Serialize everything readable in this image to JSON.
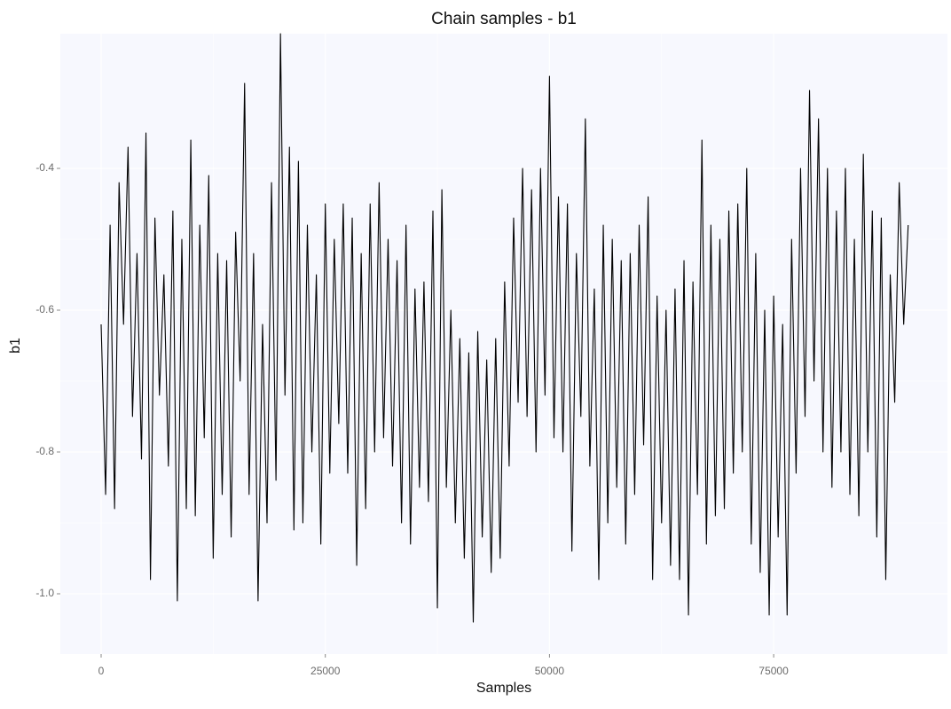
{
  "chart_data": {
    "type": "line",
    "title": "Chain samples - b1",
    "x_label": "Samples",
    "y_label": "b1",
    "x": [
      0,
      500,
      1000,
      1500,
      2000,
      2500,
      3000,
      3500,
      4000,
      4500,
      5000,
      5500,
      6000,
      6500,
      7000,
      7500,
      8000,
      8500,
      9000,
      9500,
      10000,
      10500,
      11000,
      11500,
      12000,
      12500,
      13000,
      13500,
      14000,
      14500,
      15000,
      15500,
      16000,
      16500,
      17000,
      17500,
      18000,
      18500,
      19000,
      19500,
      20000,
      20500,
      21000,
      21500,
      22000,
      22500,
      23000,
      23500,
      24000,
      24500,
      25000,
      25500,
      26000,
      26500,
      27000,
      27500,
      28000,
      28500,
      29000,
      29500,
      30000,
      30500,
      31000,
      31500,
      32000,
      32500,
      33000,
      33500,
      34000,
      34500,
      35000,
      35500,
      36000,
      36500,
      37000,
      37500,
      38000,
      38500,
      39000,
      39500,
      40000,
      40500,
      41000,
      41500,
      42000,
      42500,
      43000,
      43500,
      44000,
      44500,
      45000,
      45500,
      46000,
      46500,
      47000,
      47500,
      48000,
      48500,
      49000,
      49500,
      50000,
      50500,
      51000,
      51500,
      52000,
      52500,
      53000,
      53500,
      54000,
      54500,
      55000,
      55500,
      56000,
      56500,
      57000,
      57500,
      58000,
      58500,
      59000,
      59500,
      60000,
      60500,
      61000,
      61500,
      62000,
      62500,
      63000,
      63500,
      64000,
      64500,
      65000,
      65500,
      66000,
      66500,
      67000,
      67500,
      68000,
      68500,
      69000,
      69500,
      70000,
      70500,
      71000,
      71500,
      72000,
      72500,
      73000,
      73500,
      74000,
      74500,
      75000,
      75500,
      76000,
      76500,
      77000,
      77500,
      78000,
      78500,
      79000,
      79500,
      80000,
      80500,
      81000,
      81500,
      82000,
      82500,
      83000,
      83500,
      84000,
      84500,
      85000,
      85500,
      86000,
      86500,
      87000,
      87500,
      88000,
      88500,
      89000,
      89500,
      90000
    ],
    "series": [
      {
        "name": "b1",
        "color": "#000000",
        "values": [
          -0.62,
          -0.86,
          -0.48,
          -0.88,
          -0.42,
          -0.62,
          -0.37,
          -0.75,
          -0.52,
          -0.81,
          -0.35,
          -0.98,
          -0.47,
          -0.72,
          -0.55,
          -0.82,
          -0.46,
          -1.01,
          -0.5,
          -0.88,
          -0.36,
          -0.89,
          -0.48,
          -0.78,
          -0.41,
          -0.95,
          -0.52,
          -0.86,
          -0.53,
          -0.92,
          -0.49,
          -0.7,
          -0.28,
          -0.86,
          -0.52,
          -1.01,
          -0.62,
          -0.9,
          -0.42,
          -0.84,
          -0.21,
          -0.72,
          -0.37,
          -0.91,
          -0.39,
          -0.9,
          -0.48,
          -0.8,
          -0.55,
          -0.93,
          -0.45,
          -0.83,
          -0.5,
          -0.76,
          -0.45,
          -0.83,
          -0.47,
          -0.96,
          -0.52,
          -0.88,
          -0.45,
          -0.8,
          -0.42,
          -0.78,
          -0.5,
          -0.82,
          -0.53,
          -0.9,
          -0.48,
          -0.93,
          -0.57,
          -0.85,
          -0.56,
          -0.87,
          -0.46,
          -1.02,
          -0.43,
          -0.85,
          -0.6,
          -0.9,
          -0.64,
          -0.95,
          -0.66,
          -1.04,
          -0.63,
          -0.92,
          -0.67,
          -0.97,
          -0.64,
          -0.95,
          -0.56,
          -0.82,
          -0.47,
          -0.73,
          -0.4,
          -0.75,
          -0.43,
          -0.8,
          -0.4,
          -0.72,
          -0.27,
          -0.78,
          -0.44,
          -0.8,
          -0.45,
          -0.94,
          -0.52,
          -0.75,
          -0.33,
          -0.82,
          -0.57,
          -0.98,
          -0.48,
          -0.9,
          -0.5,
          -0.85,
          -0.53,
          -0.93,
          -0.52,
          -0.86,
          -0.48,
          -0.79,
          -0.44,
          -0.98,
          -0.58,
          -0.9,
          -0.6,
          -0.96,
          -0.57,
          -0.98,
          -0.53,
          -1.03,
          -0.56,
          -0.86,
          -0.36,
          -0.93,
          -0.48,
          -0.89,
          -0.5,
          -0.88,
          -0.46,
          -0.83,
          -0.45,
          -0.8,
          -0.4,
          -0.93,
          -0.52,
          -0.97,
          -0.6,
          -1.03,
          -0.58,
          -0.92,
          -0.62,
          -1.03,
          -0.5,
          -0.83,
          -0.4,
          -0.75,
          -0.29,
          -0.7,
          -0.33,
          -0.8,
          -0.4,
          -0.85,
          -0.46,
          -0.8,
          -0.4,
          -0.86,
          -0.5,
          -0.89,
          -0.38,
          -0.8,
          -0.46,
          -0.92,
          -0.47,
          -0.98,
          -0.55,
          -0.73,
          -0.42,
          -0.62,
          -0.48
        ]
      }
    ],
    "xlim": [
      -4551,
      94380
    ],
    "xticks": [
      0,
      25000,
      50000,
      75000
    ],
    "ylim": [
      -1.085,
      -0.21
    ],
    "yticks": [
      {
        "value": -1.0,
        "label": "-1.0"
      },
      {
        "value": -0.8,
        "label": "-0.8"
      },
      {
        "value": -0.6,
        "label": "-0.6"
      },
      {
        "value": -0.4,
        "label": "-0.4"
      }
    ],
    "grid": true
  }
}
